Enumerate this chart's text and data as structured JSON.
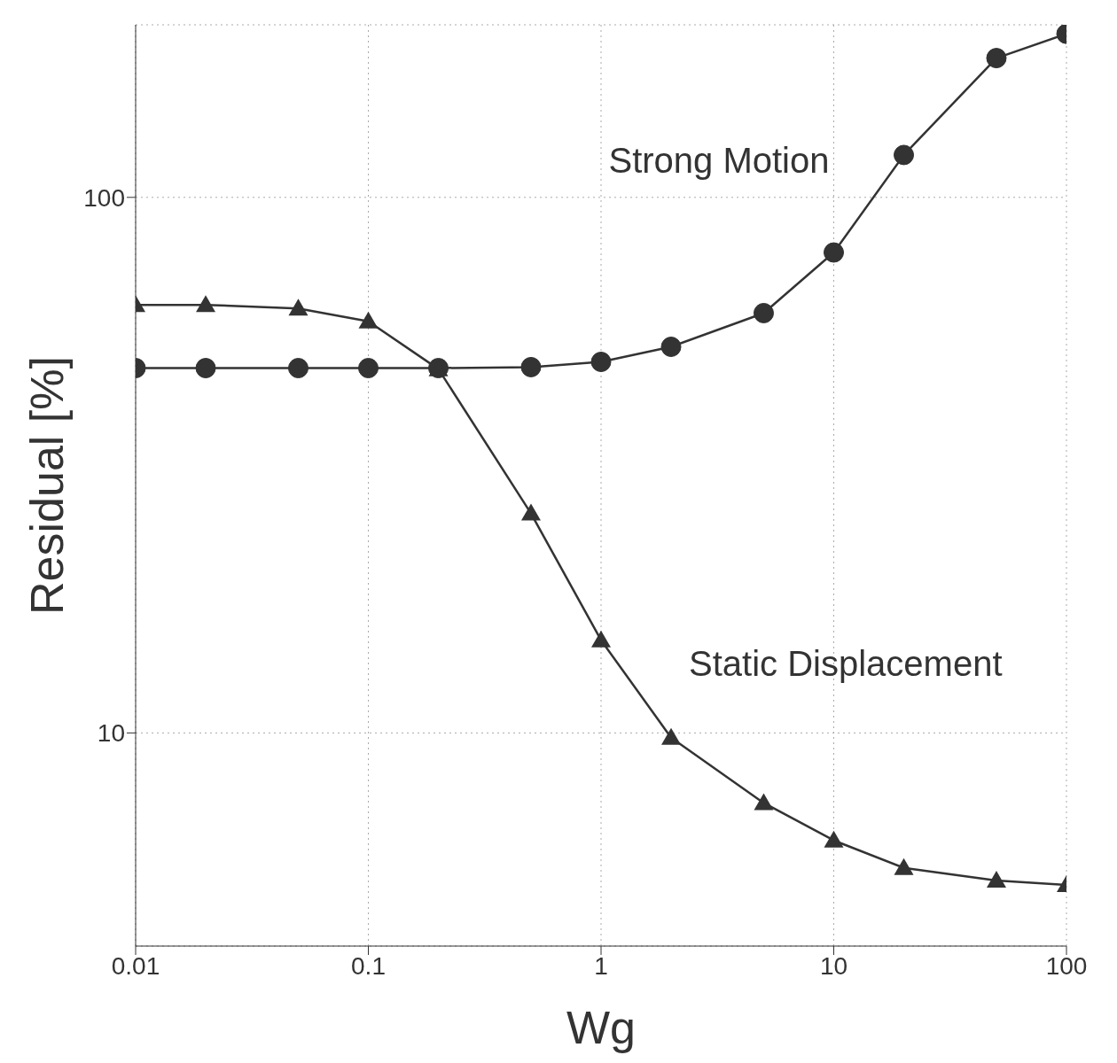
{
  "chart_data": {
    "type": "line",
    "xlabel": "Wg",
    "ylabel": "Residual [%]",
    "log": "xy",
    "grid": true,
    "legend": false,
    "x": [
      0.01,
      0.02,
      0.05,
      0.1,
      0.2,
      0.5,
      1,
      2,
      5,
      10,
      20,
      50,
      100
    ],
    "xlim": [
      0.01,
      100
    ],
    "xticks": [
      0.01,
      0.1,
      1,
      10,
      100
    ],
    "ylim": [
      4,
      210
    ],
    "yticks": [
      10,
      100
    ],
    "series": [
      {
        "name": "Strong Motion",
        "color": "#333333",
        "marker": "circle",
        "values": [
          48,
          48,
          48,
          48,
          48,
          48.2,
          49.3,
          52.6,
          60.8,
          78.9,
          120,
          182,
          202
        ]
      },
      {
        "name": "Static Displacement",
        "color": "#333333",
        "marker": "triangle",
        "values": [
          63,
          63,
          62,
          58.7,
          47.8,
          25.7,
          14.9,
          9.8,
          7.4,
          6.3,
          5.6,
          5.3,
          5.2
        ]
      }
    ]
  }
}
